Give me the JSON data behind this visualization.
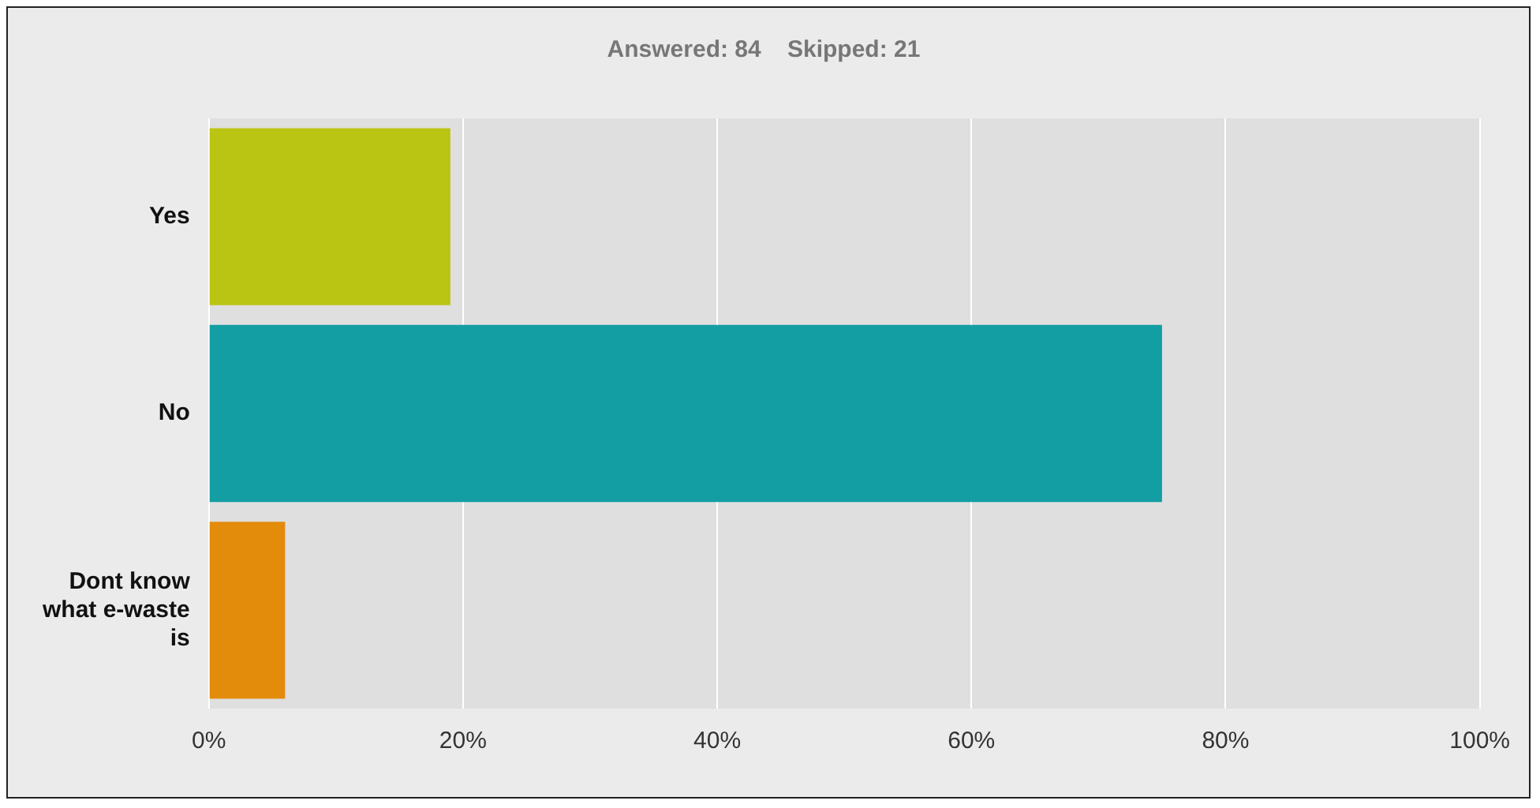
{
  "chart_data": {
    "type": "bar",
    "orientation": "horizontal",
    "title": "Answered: 84    Skipped: 21",
    "categories": [
      "Yes",
      "No",
      "Dont know what e-waste is"
    ],
    "values": [
      19,
      75,
      6
    ],
    "colors": [
      "#bac412",
      "#129ea2",
      "#e38b0b"
    ],
    "xlim": [
      0,
      100
    ],
    "xticks": [
      {
        "value": 0,
        "label": "0%"
      },
      {
        "value": 20,
        "label": "20%"
      },
      {
        "value": 40,
        "label": "40%"
      },
      {
        "value": 60,
        "label": "60%"
      },
      {
        "value": 80,
        "label": "80%"
      },
      {
        "value": 100,
        "label": "100%"
      }
    ],
    "grid": "x",
    "legend": false
  }
}
